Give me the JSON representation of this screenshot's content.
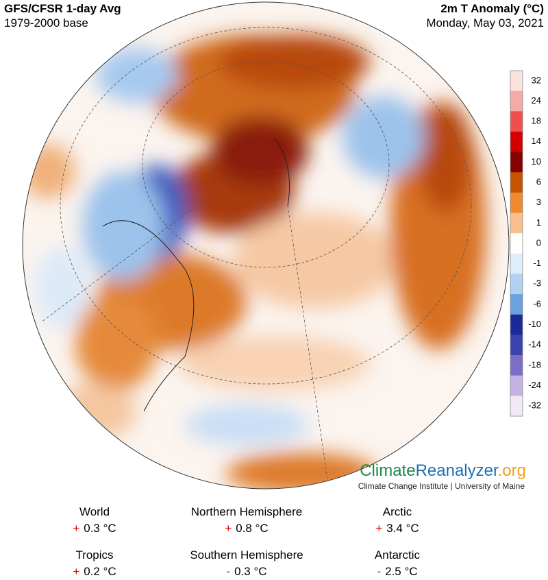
{
  "header": {
    "title": "GFS/CFSR 1-day Avg",
    "subtitle": "1979-2000 base",
    "variable": "2m T Anomaly (°C)",
    "date": "Monday, May 03, 2021"
  },
  "colorbar": {
    "labels": [
      "32",
      "24",
      "18",
      "14",
      "10",
      "6",
      "3",
      "1",
      "0",
      "-1",
      "-3",
      "-6",
      "-10",
      "-14",
      "-18",
      "-24",
      "-32"
    ],
    "colors": [
      "#fbe2dc",
      "#f4aaa6",
      "#ee5050",
      "#d20000",
      "#870000",
      "#c45400",
      "#ef8a30",
      "#f8c08c",
      "#ffffff",
      "#deedf9",
      "#b2d2f1",
      "#6aa2de",
      "#1a2a96",
      "#3b44ad",
      "#7c6ec6",
      "#c5b2e4",
      "#f3e8f6"
    ]
  },
  "logo": {
    "climate": "Climate",
    "reanalyzer": "Reanalyzer",
    "org": ".org",
    "tagline": "Climate Change Institute | University of Maine"
  },
  "stats": [
    {
      "region": "World",
      "sign": "+",
      "value": "0.3 °C",
      "sign_color": "#e00000"
    },
    {
      "region": "Northern Hemisphere",
      "sign": "+",
      "value": "0.8 °C",
      "sign_color": "#e00000"
    },
    {
      "region": "Arctic",
      "sign": "+",
      "value": "3.4 °C",
      "sign_color": "#e00000"
    },
    {
      "region": "Tropics",
      "sign": "+",
      "value": "0.2 °C",
      "sign_color": "#e00000"
    },
    {
      "region": "Southern Hemisphere",
      "sign": "-",
      "value": "0.3 °C",
      "sign_color": "#1a3fd0"
    },
    {
      "region": "Antarctic",
      "sign": "-",
      "value": "2.5 °C",
      "sign_color": "#1a3fd0"
    }
  ]
}
